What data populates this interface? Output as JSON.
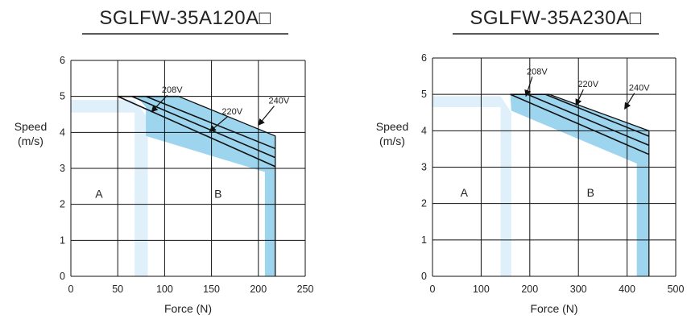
{
  "chart_data": [
    {
      "type": "line",
      "title": "SGLFW-35A120A□",
      "xlabel": "Force (N)",
      "ylabel": [
        "Speed",
        "(m/s)"
      ],
      "xlim": [
        0,
        250
      ],
      "ylim": [
        0,
        6
      ],
      "xticks": [
        0,
        50,
        100,
        150,
        200,
        250
      ],
      "yticks": [
        0,
        1,
        2,
        3,
        4,
        5,
        6
      ],
      "grid": true,
      "regions": [
        {
          "name": "A",
          "label": "A",
          "color": "#dff0fb",
          "polygon": [
            [
              0,
              4.9
            ],
            [
              68,
              4.9
            ],
            [
              82,
              4.4
            ],
            [
              82,
              0
            ],
            [
              68,
              0
            ],
            [
              68,
              4.55
            ],
            [
              0,
              4.55
            ]
          ],
          "label_pos": [
            30,
            2.3
          ]
        },
        {
          "name": "B",
          "label": "B",
          "color": "#9dd4ee",
          "polygon": [
            [
              70,
              5.0
            ],
            [
              115,
              5.0
            ],
            [
              218,
              3.9
            ],
            [
              218,
              0
            ],
            [
              207,
              0
            ],
            [
              207,
              2.9
            ],
            [
              80,
              3.9
            ],
            [
              80,
              4.7
            ]
          ],
          "label_pos": [
            157,
            2.3
          ]
        }
      ],
      "series": [
        {
          "label": "208V",
          "points": [
            [
              50,
              5.0
            ],
            [
              218,
              3.05
            ]
          ]
        },
        {
          "label": "220V",
          "points": [
            [
              65,
              5.0
            ],
            [
              218,
              3.3
            ]
          ]
        },
        {
          "label": "240V",
          "points": [
            [
              80,
              5.0
            ],
            [
              218,
              3.55
            ]
          ]
        }
      ],
      "annotations": [
        {
          "text": "208V",
          "text_at": [
            108,
            5.1
          ],
          "arrow_to": [
            86,
            4.57
          ]
        },
        {
          "text": "220V",
          "text_at": [
            172,
            4.5
          ],
          "arrow_to": [
            148,
            4.02
          ]
        },
        {
          "text": "240V",
          "text_at": [
            222,
            4.8
          ],
          "arrow_to": [
            200,
            4.2
          ]
        }
      ]
    },
    {
      "type": "line",
      "title": "SGLFW-35A230A□",
      "xlabel": "Force (N)",
      "ylabel": [
        "Speed",
        "(m/s)"
      ],
      "xlim": [
        0,
        500
      ],
      "ylim": [
        0,
        6
      ],
      "xticks": [
        0,
        100,
        200,
        300,
        400,
        500
      ],
      "yticks": [
        0,
        1,
        2,
        3,
        4,
        5,
        6
      ],
      "grid": true,
      "regions": [
        {
          "name": "A",
          "label": "A",
          "color": "#dff0fb",
          "polygon": [
            [
              0,
              4.95
            ],
            [
              140,
              4.95
            ],
            [
              162,
              4.5
            ],
            [
              162,
              0
            ],
            [
              140,
              0
            ],
            [
              140,
              4.65
            ],
            [
              0,
              4.65
            ]
          ],
          "label_pos": [
            65,
            2.3
          ]
        },
        {
          "name": "B",
          "label": "B",
          "color": "#9dd4ee",
          "polygon": [
            [
              160,
              5.0
            ],
            [
              240,
              5.0
            ],
            [
              445,
              4.0
            ],
            [
              445,
              0
            ],
            [
              420,
              0
            ],
            [
              420,
              3.1
            ],
            [
              162,
              4.55
            ]
          ],
          "label_pos": [
            325,
            2.3
          ]
        }
      ],
      "series": [
        {
          "label": "208V",
          "points": [
            [
              160,
              5.0
            ],
            [
              445,
              3.35
            ]
          ]
        },
        {
          "label": "220V",
          "points": [
            [
              195,
              5.0
            ],
            [
              445,
              3.6
            ]
          ]
        },
        {
          "label": "240V",
          "points": [
            [
              232,
              5.0
            ],
            [
              445,
              3.85
            ]
          ]
        }
      ],
      "annotations": [
        {
          "text": "208V",
          "text_at": [
            215,
            5.55
          ],
          "arrow_to": [
            192,
            4.95
          ]
        },
        {
          "text": "220V",
          "text_at": [
            320,
            5.2
          ],
          "arrow_to": [
            295,
            4.7
          ]
        },
        {
          "text": "240V",
          "text_at": [
            425,
            5.1
          ],
          "arrow_to": [
            395,
            4.6
          ]
        }
      ]
    }
  ]
}
